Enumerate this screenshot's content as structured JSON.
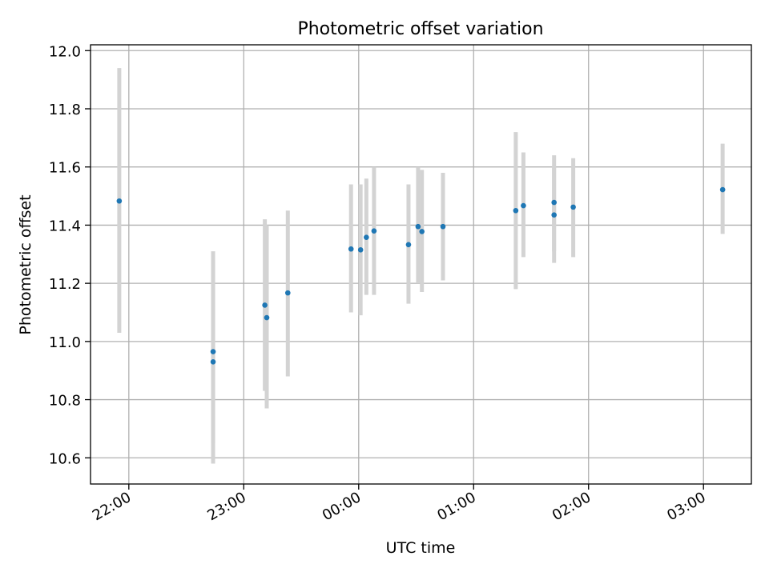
{
  "chart_data": {
    "type": "scatter",
    "title": "Photometric offset variation",
    "xlabel": "UTC time",
    "ylabel": "Photometric offset",
    "xlim": [
      "21:40",
      "03:25"
    ],
    "ylim": [
      10.51,
      12.02
    ],
    "x_ticks": [
      "22:00",
      "23:00",
      "00:00",
      "01:00",
      "02:00",
      "03:00"
    ],
    "y_ticks": [
      "10.6",
      "10.8",
      "11.0",
      "11.2",
      "11.4",
      "11.6",
      "11.8",
      "12.0"
    ],
    "grid": true,
    "colors": {
      "points": "#1f77b4",
      "errorbars": "#d3d3d3",
      "grid": "#b0b0b0"
    },
    "points": [
      {
        "x": "21:55",
        "y": 11.483,
        "ylow": 11.03,
        "yhigh": 11.94
      },
      {
        "x": "22:44",
        "y": 10.965,
        "ylow": 10.65,
        "yhigh": 11.28
      },
      {
        "x": "22:44",
        "y": 10.93,
        "ylow": 10.58,
        "yhigh": 11.31
      },
      {
        "x": "23:11",
        "y": 11.125,
        "ylow": 10.83,
        "yhigh": 11.42
      },
      {
        "x": "23:12",
        "y": 11.082,
        "ylow": 10.77,
        "yhigh": 11.4
      },
      {
        "x": "23:23",
        "y": 11.167,
        "ylow": 10.88,
        "yhigh": 11.45
      },
      {
        "x": "23:56",
        "y": 11.318,
        "ylow": 11.1,
        "yhigh": 11.54
      },
      {
        "x": "00:01",
        "y": 11.315,
        "ylow": 11.09,
        "yhigh": 11.54
      },
      {
        "x": "00:04",
        "y": 11.358,
        "ylow": 11.16,
        "yhigh": 11.56
      },
      {
        "x": "00:08",
        "y": 11.38,
        "ylow": 11.16,
        "yhigh": 11.6
      },
      {
        "x": "00:26",
        "y": 11.333,
        "ylow": 11.13,
        "yhigh": 11.54
      },
      {
        "x": "00:31",
        "y": 11.395,
        "ylow": 11.2,
        "yhigh": 11.6
      },
      {
        "x": "00:33",
        "y": 11.378,
        "ylow": 11.17,
        "yhigh": 11.59
      },
      {
        "x": "00:44",
        "y": 11.395,
        "ylow": 11.21,
        "yhigh": 11.58
      },
      {
        "x": "01:22",
        "y": 11.45,
        "ylow": 11.18,
        "yhigh": 11.72
      },
      {
        "x": "01:26",
        "y": 11.467,
        "ylow": 11.29,
        "yhigh": 11.65
      },
      {
        "x": "01:42",
        "y": 11.478,
        "ylow": 11.31,
        "yhigh": 11.64
      },
      {
        "x": "01:42",
        "y": 11.435,
        "ylow": 11.27,
        "yhigh": 11.6
      },
      {
        "x": "01:52",
        "y": 11.462,
        "ylow": 11.29,
        "yhigh": 11.63
      },
      {
        "x": "03:10",
        "y": 11.522,
        "ylow": 11.37,
        "yhigh": 11.68
      }
    ]
  }
}
